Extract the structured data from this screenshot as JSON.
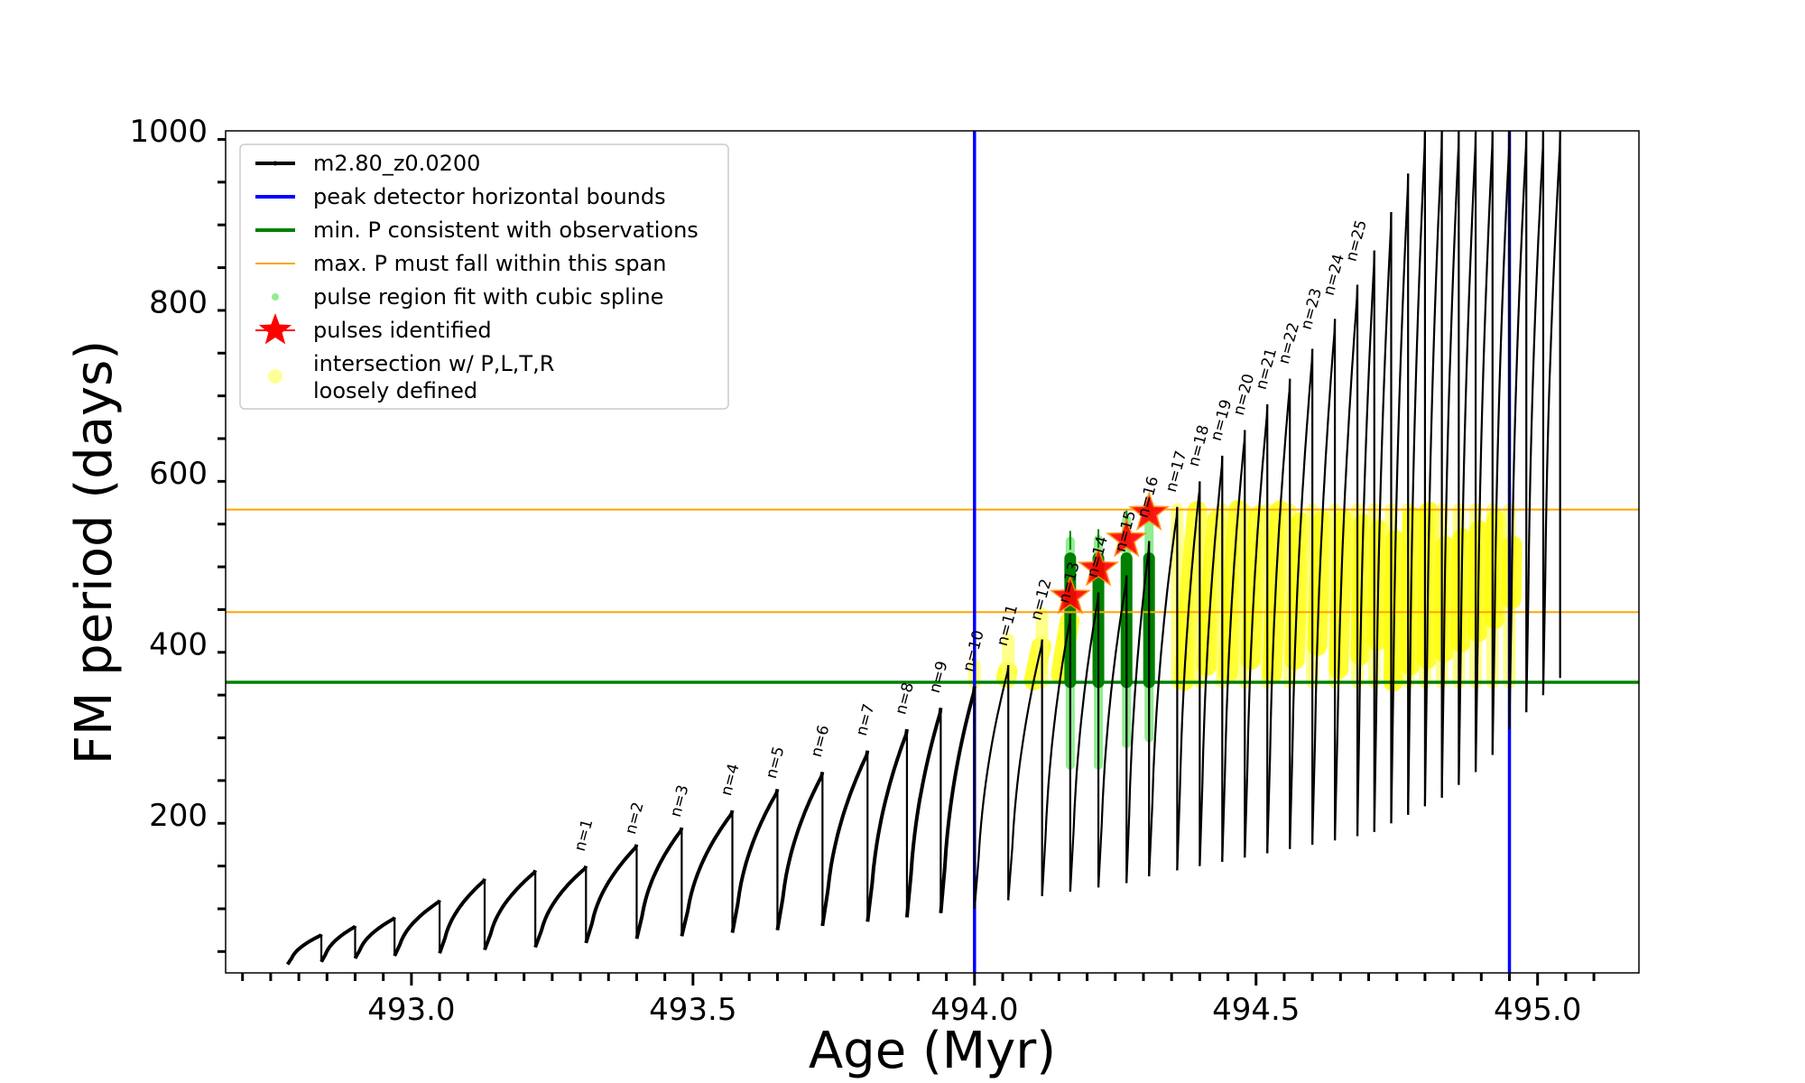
{
  "chart_data": {
    "type": "line",
    "xlabel": "Age (Myr)",
    "ylabel": "FM period (days)",
    "xlim": [
      492.67,
      495.18
    ],
    "ylim": [
      15,
      1000
    ],
    "x_ticks": [
      "493.0",
      "493.5",
      "494.0",
      "494.5",
      "495.0"
    ],
    "y_ticks": [
      "200",
      "400",
      "600",
      "800",
      "1000"
    ],
    "legend_position": "upper-left",
    "legend": [
      {
        "label": "m2.80_z0.0200",
        "color": "#000000",
        "marker": "line-dot"
      },
      {
        "label": "peak detector horizontal bounds",
        "color": "#0000ff",
        "marker": "line"
      },
      {
        "label": "min. P consistent with observations",
        "color": "#008000",
        "marker": "line"
      },
      {
        "label": "max. P must fall within this span",
        "color": "#ffa500",
        "marker": "line"
      },
      {
        "label": "pulse region fit with cubic spline",
        "color": "#90ee90",
        "marker": "dot"
      },
      {
        "label": "pulses identified",
        "color": "#ff0000",
        "marker": "star"
      },
      {
        "label": "intersection w/ P,L,T,R",
        "color": "#ffff99",
        "marker": "circle"
      },
      {
        "label": "loosely defined",
        "color": "#ffff99",
        "marker": "none"
      }
    ],
    "vlines": [
      {
        "x": 494.0,
        "color": "#0000ff"
      },
      {
        "x": 494.95,
        "color": "#0000ff"
      }
    ],
    "hlines": [
      {
        "y": 355,
        "color": "#008000"
      },
      {
        "y": 437,
        "color": "#ffa500"
      },
      {
        "y": 557,
        "color": "#ffa500"
      }
    ],
    "pulse_ages": [
      492.78,
      492.84,
      492.9,
      492.97,
      493.05,
      493.13,
      493.22,
      493.31,
      493.4,
      493.48,
      493.57,
      493.65,
      493.73,
      493.81,
      493.88,
      493.94,
      494.0,
      494.06,
      494.12,
      494.17,
      494.22,
      494.27,
      494.31,
      494.36,
      494.4,
      494.44,
      494.48,
      494.52,
      494.56,
      494.6,
      494.64,
      494.68,
      494.71,
      494.74,
      494.77,
      494.8,
      494.83,
      494.86,
      494.89,
      494.92,
      494.95,
      494.98,
      495.01
    ],
    "pulse_peaks": [
      60,
      70,
      80,
      100,
      125,
      135,
      140,
      165,
      185,
      205,
      230,
      250,
      275,
      300,
      325,
      350,
      375,
      405,
      435,
      460,
      480,
      520,
      560,
      590,
      620,
      650,
      680,
      710,
      745,
      780,
      820,
      860,
      905,
      950,
      1000,
      1000,
      1000,
      1000,
      1000,
      1000,
      1000,
      1000,
      1000
    ],
    "pulse_troughs": [
      25,
      28,
      32,
      35,
      38,
      42,
      45,
      50,
      55,
      58,
      62,
      65,
      70,
      75,
      80,
      85,
      90,
      100,
      105,
      110,
      115,
      120,
      128,
      135,
      140,
      145,
      150,
      155,
      160,
      165,
      170,
      175,
      180,
      190,
      200,
      210,
      220,
      235,
      250,
      270,
      300,
      320,
      340
    ],
    "pulse_labels": [
      "n=1",
      "n=2",
      "n=3",
      "n=4",
      "n=5",
      "n=6",
      "n=7",
      "n=8",
      "n=9",
      "n=10",
      "n=11",
      "n=12",
      "n=13",
      "n=14",
      "n=15",
      "n=16",
      "n=17",
      "n=18",
      "n=19",
      "n=20",
      "n=21",
      "n=22",
      "n=23",
      "n=24",
      "n=25"
    ],
    "pulse_label_ages": [
      493.31,
      493.4,
      493.48,
      493.57,
      493.65,
      493.73,
      493.81,
      493.88,
      493.94,
      494.0,
      494.06,
      494.12,
      494.17,
      494.22,
      494.27,
      494.31,
      494.36,
      494.4,
      494.44,
      494.48,
      494.52,
      494.56,
      494.6,
      494.64,
      494.68
    ],
    "pulse_label_periods": [
      150,
      170,
      190,
      215,
      235,
      260,
      285,
      310,
      335,
      360,
      390,
      420,
      440,
      470,
      500,
      540,
      570,
      600,
      630,
      660,
      690,
      720,
      760,
      800,
      840
    ],
    "pulses_identified": [
      {
        "x": 494.17,
        "y": 455
      },
      {
        "x": 494.22,
        "y": 488
      },
      {
        "x": 494.27,
        "y": 522
      },
      {
        "x": 494.31,
        "y": 553
      }
    ],
    "spline_fit_pulses": [
      {
        "x": 494.17,
        "ymin": 258,
        "ymax": 520
      },
      {
        "x": 494.22,
        "ymin": 258,
        "ymax": 522
      },
      {
        "x": 494.27,
        "ymin": 283,
        "ymax": 545
      },
      {
        "x": 494.31,
        "ymin": 290,
        "ymax": 560
      }
    ],
    "intersection_region": {
      "ymin": 355,
      "ymax": 557,
      "pulses": [
        494.0,
        494.06,
        494.12,
        494.36,
        494.4,
        494.44,
        494.48,
        494.52,
        494.56,
        494.6,
        494.64,
        494.68,
        494.71,
        494.74,
        494.77,
        494.8,
        494.83,
        494.86,
        494.89,
        494.92,
        494.95
      ]
    }
  }
}
